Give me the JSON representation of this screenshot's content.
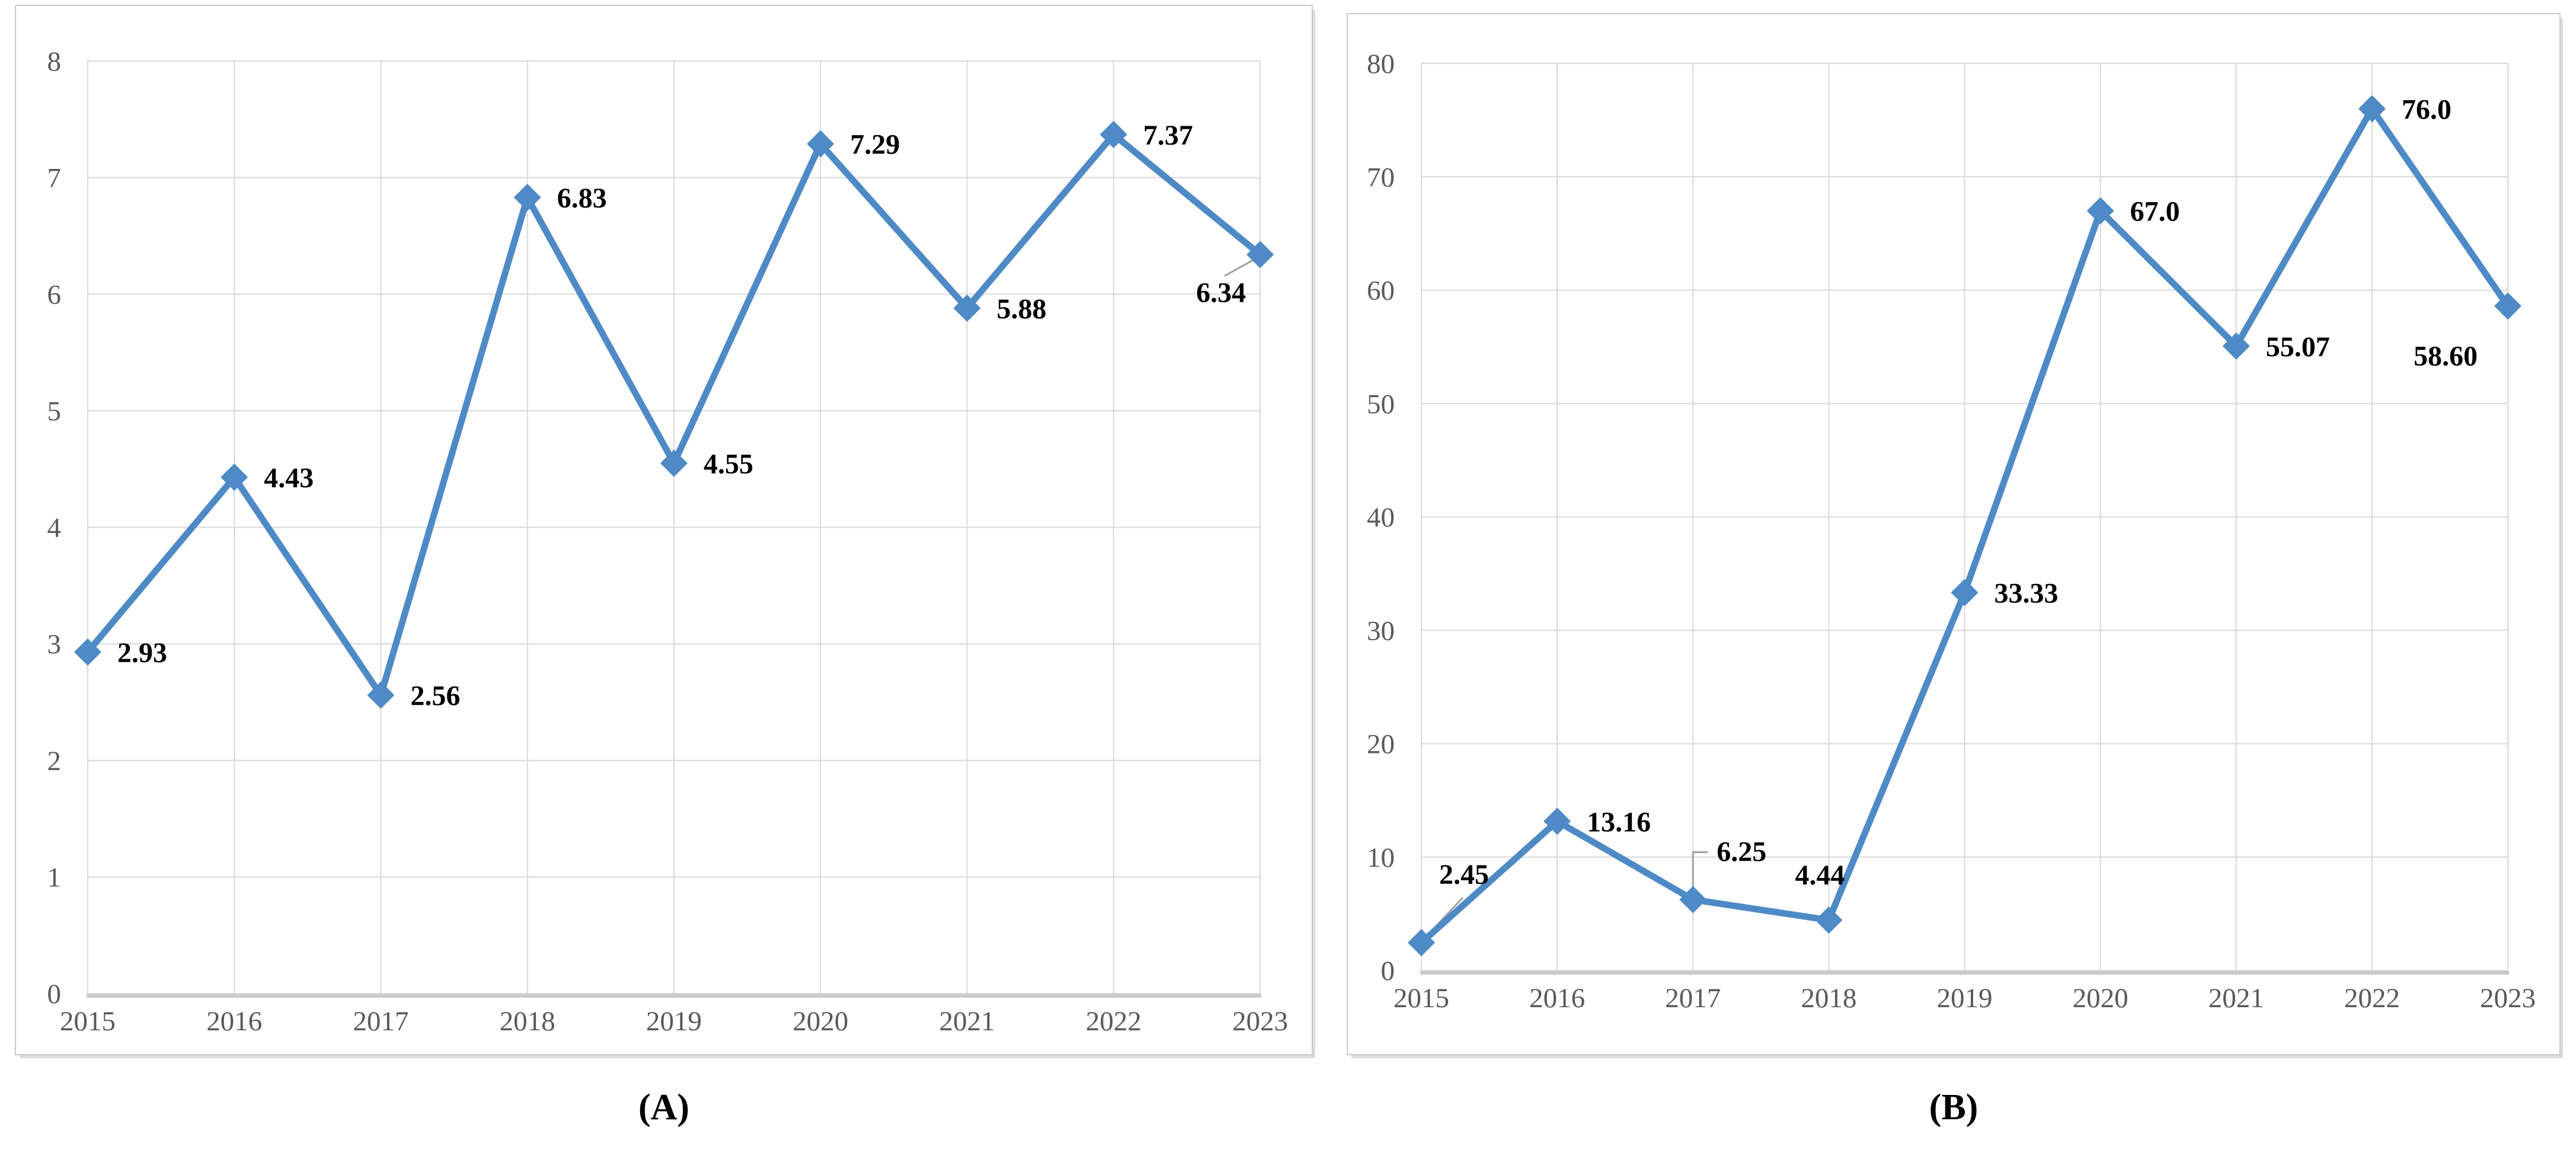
{
  "figure": {
    "background": "#ffffff",
    "panel_count": 2
  },
  "styles": {
    "line_color": "#4e8ac6",
    "grid_color": "#d9d9d9",
    "axis_line_color": "#c9c9c9",
    "plot_border_color": "#d9d9d9",
    "tick_label_color": "#595959",
    "data_label_color": "#000000",
    "leader_color": "#a0a0a0",
    "panel_border_color": "#c9c9c9",
    "panel_shadow_color": "#dcdcdc"
  },
  "chart_data": [
    {
      "id": "A",
      "type": "line",
      "caption": "(A)",
      "title": "",
      "xlabel": "",
      "ylabel": "",
      "legend": "none",
      "grid": true,
      "marker": "diamond",
      "categories": [
        "2015",
        "2016",
        "2017",
        "2018",
        "2019",
        "2020",
        "2021",
        "2022",
        "2023"
      ],
      "values": [
        2.93,
        4.43,
        2.56,
        6.83,
        4.55,
        7.29,
        5.88,
        7.37,
        6.34
      ],
      "data_labels": [
        "2.93",
        "4.43",
        "2.56",
        "6.83",
        "4.55",
        "7.29",
        "5.88",
        "7.37",
        "6.34"
      ],
      "label_placements": [
        "right",
        "right",
        "right",
        "right",
        "right",
        "right",
        "right",
        "right",
        "below-left-leader"
      ],
      "ylim": [
        0,
        8
      ],
      "yticks": [
        "0",
        "1",
        "2",
        "3",
        "4",
        "5",
        "6",
        "7",
        "8"
      ]
    },
    {
      "id": "B",
      "type": "line",
      "caption": "(B)",
      "title": "",
      "xlabel": "",
      "ylabel": "",
      "legend": "none",
      "grid": true,
      "marker": "diamond",
      "categories": [
        "2015",
        "2016",
        "2017",
        "2018",
        "2019",
        "2020",
        "2021",
        "2022",
        "2023"
      ],
      "values": [
        2.45,
        13.16,
        6.25,
        4.44,
        33.33,
        67.0,
        55.07,
        76.0,
        58.6
      ],
      "data_labels": [
        "2.45",
        "13.16",
        "6.25",
        "4.44",
        "33.33",
        "67.0",
        "55.07",
        "76.0",
        "58.60"
      ],
      "label_placements": [
        "above-right-leader",
        "right",
        "above-elbow-leader",
        "above",
        "right",
        "right",
        "right",
        "right",
        "below-left"
      ],
      "ylim": [
        0,
        80
      ],
      "yticks": [
        "0",
        "10",
        "20",
        "30",
        "40",
        "50",
        "60",
        "70",
        "80"
      ]
    }
  ]
}
